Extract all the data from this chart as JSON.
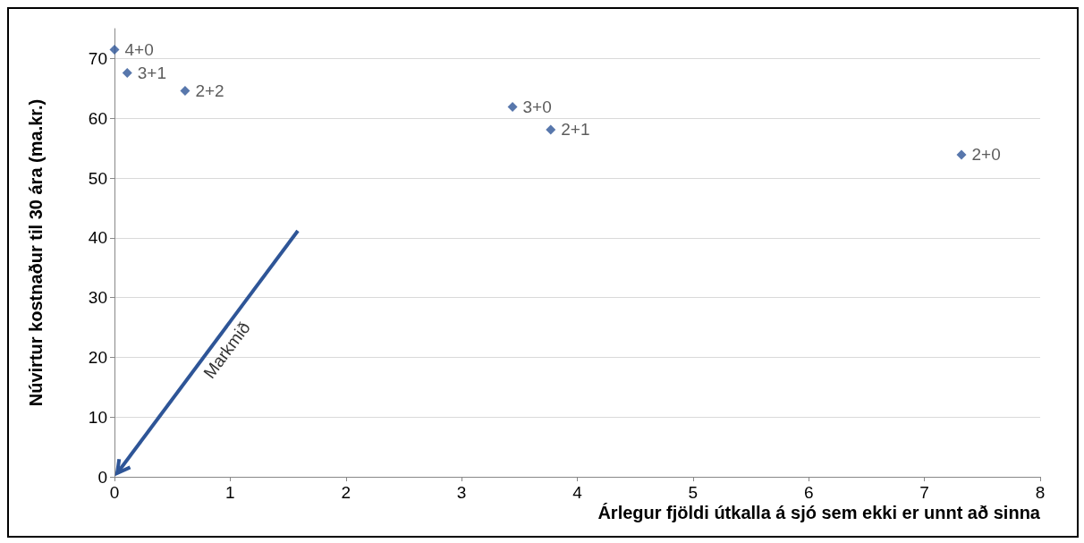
{
  "chart_data": {
    "type": "scatter",
    "xlabel": "Árlegur fjöldi útkalla á sjó sem ekki er unnt að sinna",
    "ylabel": "Núvirtur kostnaður til 30 ára (ma.kr.)",
    "x": [
      0,
      0.11,
      0.61,
      3.44,
      3.77,
      7.32
    ],
    "values": [
      71.5,
      67.6,
      64.6,
      61.9,
      58.1,
      53.9
    ],
    "value_labels": [
      "4+0",
      "3+1",
      "2+2",
      "3+0",
      "2+1",
      "2+0"
    ],
    "color": "#2e5597",
    "marker": "diamond",
    "grid": "y",
    "xlim": [
      0,
      8
    ],
    "xticks": [
      0,
      1,
      2,
      3,
      4,
      5,
      6,
      7,
      8
    ],
    "ylim": [
      0,
      75
    ],
    "yticks": [
      0,
      10,
      20,
      30,
      40,
      50,
      60,
      70
    ],
    "annotations": [
      "Markmið"
    ]
  }
}
